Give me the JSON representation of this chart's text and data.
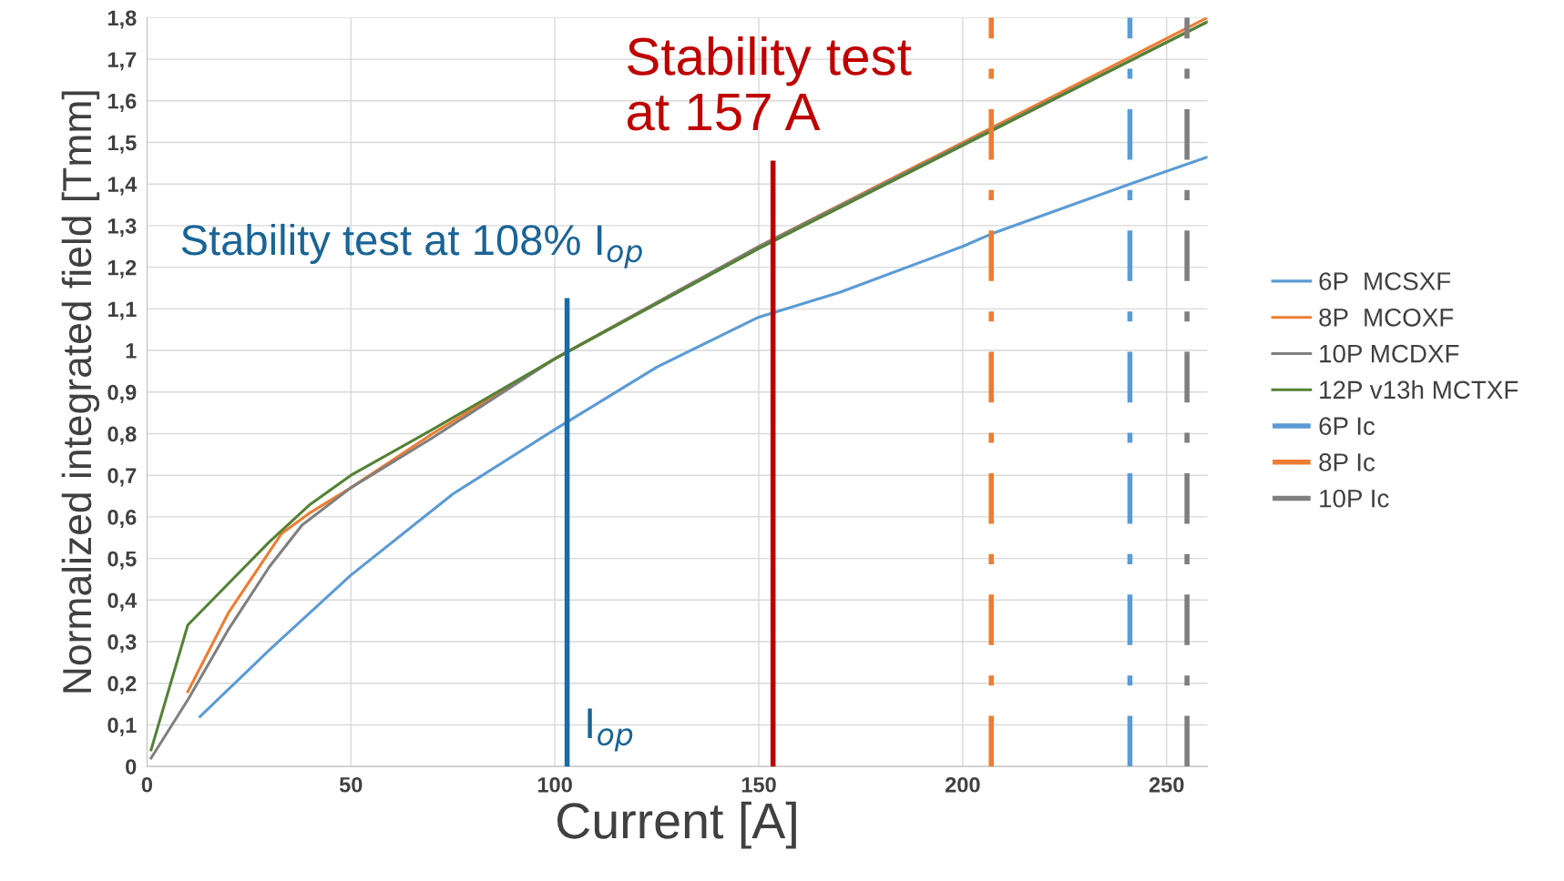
{
  "chart_data": {
    "type": "line",
    "xlabel": "Current [A]",
    "ylabel": "Normalized integrated field [Tmm]",
    "xlim": [
      0,
      260
    ],
    "xticks": [
      0,
      50,
      100,
      150,
      200,
      250
    ],
    "ylim": [
      0,
      1.8
    ],
    "yticks": [
      0,
      {
        "value": 0.1,
        "label": "0,1"
      },
      {
        "value": 0.2,
        "label": "0,2"
      },
      {
        "value": 0.3,
        "label": "0,3"
      },
      {
        "value": 0.4,
        "label": "0,4"
      },
      {
        "value": 0.5,
        "label": "0,5"
      },
      {
        "value": 0.6,
        "label": "0,6"
      },
      {
        "value": 0.7,
        "label": "0,7"
      },
      {
        "value": 0.8,
        "label": "0,8"
      },
      {
        "value": 0.9,
        "label": "0,9"
      },
      1,
      {
        "value": 1.1,
        "label": "1,1"
      },
      {
        "value": 1.2,
        "label": "1,2"
      },
      {
        "value": 1.3,
        "label": "1,3"
      },
      {
        "value": 1.4,
        "label": "1,4"
      },
      {
        "value": 1.5,
        "label": "1,5"
      },
      {
        "value": 1.6,
        "label": "1,6"
      },
      {
        "value": 1.7,
        "label": "1,7"
      },
      {
        "value": 1.8,
        "label": "1,8"
      }
    ],
    "grid": true,
    "legend": "right",
    "marker": "none",
    "series": [
      {
        "name": "6P  MCSXF",
        "color": "#5b9bd5",
        "x": [
          13,
          30,
          50,
          75,
          100,
          125,
          150,
          170,
          200,
          207,
          241,
          260
        ],
        "values": [
          0.12,
          0.28,
          0.46,
          0.655,
          0.81,
          0.96,
          1.08,
          1.14,
          1.25,
          1.28,
          1.4,
          1.465
        ]
      },
      {
        "name": "8P  MCOXF",
        "color": "#ed7d31",
        "x": [
          10,
          20,
          33,
          40,
          50,
          70,
          100,
          150,
          207,
          260
        ],
        "values": [
          0.18,
          0.37,
          0.56,
          0.61,
          0.67,
          0.8,
          0.98,
          1.25,
          1.535,
          1.8
        ]
      },
      {
        "name": "10P MCDXF",
        "color": "#7f7f7f",
        "x": [
          1,
          10,
          20,
          30,
          38,
          50,
          70,
          100,
          150,
          260
        ],
        "values": [
          0.02,
          0.16,
          0.33,
          0.48,
          0.58,
          0.67,
          0.79,
          0.98,
          1.25,
          1.79
        ]
      },
      {
        "name": "12P v13h MCTXF",
        "color": "#548235",
        "x": [
          1,
          10,
          20,
          30,
          40,
          50,
          70,
          100,
          150,
          260
        ],
        "values": [
          0.04,
          0.34,
          0.44,
          0.54,
          0.63,
          0.7,
          0.81,
          0.98,
          1.245,
          1.79
        ]
      },
      {
        "name": "6P Ic",
        "color": "#5b9bd5",
        "line_style": "dashed",
        "x": [
          241,
          241
        ],
        "values": [
          0,
          1.8
        ]
      },
      {
        "name": "8P Ic",
        "color": "#ed7d31",
        "line_style": "dashed",
        "x": [
          207,
          207
        ],
        "values": [
          0,
          1.8
        ]
      },
      {
        "name": "10P Ic",
        "color": "#7f7f7f",
        "line_style": "dashed",
        "x": [
          255,
          255
        ],
        "values": [
          0,
          1.8
        ]
      },
      {
        "color": "#1a6aa8",
        "x": [
          103,
          103
        ],
        "values": [
          0,
          1.12
        ]
      },
      {
        "color": "#c00000",
        "x": [
          153.5,
          153.5
        ],
        "values": [
          0,
          1.45
        ]
      }
    ],
    "annotations": [
      "Stability test at 108% I$_{op}$",
      "I$_{op}$",
      "Stability test\nat 157 A"
    ]
  }
}
